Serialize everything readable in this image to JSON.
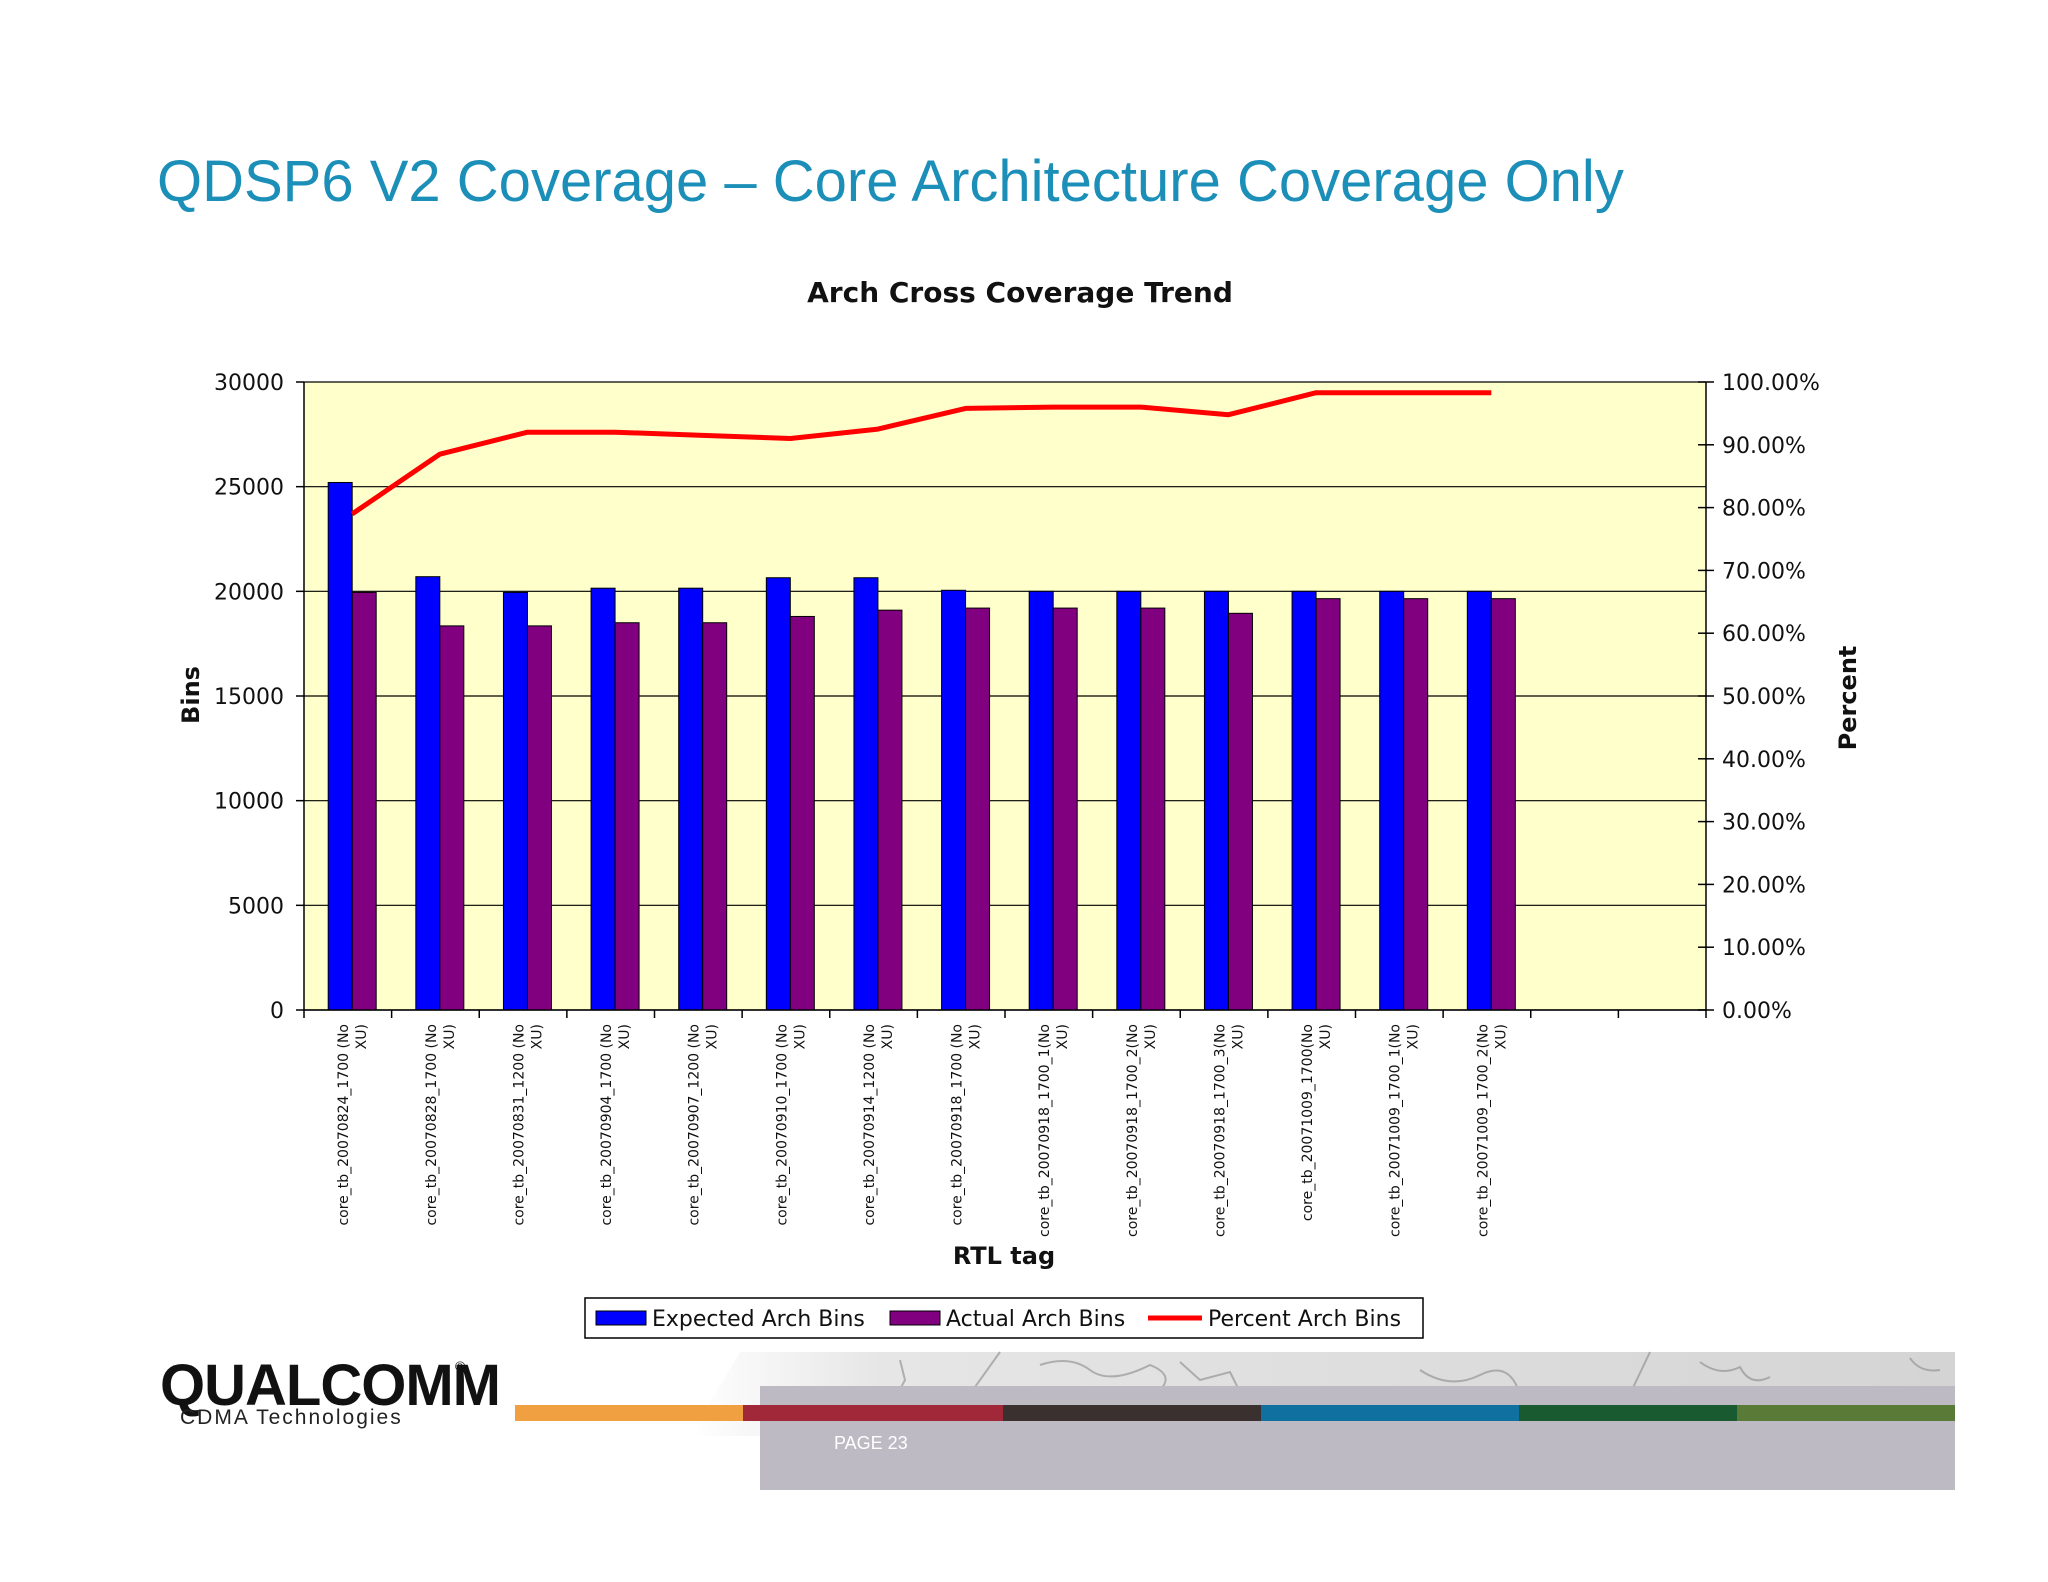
{
  "slide": {
    "title": "QDSP6 V2 Coverage – Core Architecture Coverage Only",
    "page_label": "PAGE 23"
  },
  "logo": {
    "brand": "QUALCOMM",
    "registered_mark": "®",
    "subtitle": "CDMA Technologies"
  },
  "colors": {
    "title": "#1b8fb8",
    "plot_background": "#ffffcc",
    "expected_bar": "#0000ff",
    "actual_bar": "#800080",
    "percent_line": "#ff0000",
    "footer_orange": "#f0a040",
    "footer_red": "#a02838",
    "footer_dark": "#3a3030",
    "footer_blue": "#1070a0",
    "footer_green": "#1a5a30",
    "footer_olive": "#5a7a38",
    "footer_gray": "#bdbac4"
  },
  "chart_data": {
    "type": "bar",
    "title": "Arch Cross Coverage Trend",
    "xlabel": "RTL tag",
    "ylabel": "Bins",
    "y2label": "Percent",
    "ylim": [
      0,
      30000
    ],
    "yticks": [
      "0",
      "5000",
      "10000",
      "15000",
      "20000",
      "25000",
      "30000"
    ],
    "y2lim": [
      0,
      100
    ],
    "y2ticks": [
      "0.00%",
      "10.00%",
      "20.00%",
      "30.00%",
      "40.00%",
      "50.00%",
      "60.00%",
      "70.00%",
      "80.00%",
      "90.00%",
      "100.00%"
    ],
    "grid": "horizontal at major ticks",
    "legend_position": "bottom",
    "categories": [
      [
        "core_tb_20070824_1700 (No",
        "XU)"
      ],
      [
        "core_tb_20070828_1700 (No",
        "XU)"
      ],
      [
        "core_tb_20070831_1200 (No",
        "XU)"
      ],
      [
        "core_tb_20070904_1700 (No",
        "XU)"
      ],
      [
        "core_tb_20070907_1200 (No",
        "XU)"
      ],
      [
        "core_tb_20070910_1700 (No",
        "XU)"
      ],
      [
        "core_tb_20070914_1200 (No",
        "XU)"
      ],
      [
        "core_tb_20070918_1700 (No",
        "XU)"
      ],
      [
        "core_tb_20070918_1700_1(No",
        "XU)"
      ],
      [
        "core_tb_20070918_1700_2(No",
        "XU)"
      ],
      [
        "core_tb_20070918_1700_3(No",
        "XU)"
      ],
      [
        "core_tb_20071009_1700(No",
        "XU)"
      ],
      [
        "core_tb_20071009_1700_1(No",
        "XU)"
      ],
      [
        "core_tb_20071009_1700_2(No",
        "XU)"
      ]
    ],
    "series": [
      {
        "name": "Expected Arch Bins",
        "type": "bar",
        "axis": "left",
        "values": [
          25200,
          20700,
          19950,
          20150,
          20150,
          20650,
          20650,
          20050,
          20000,
          20000,
          20000,
          20000,
          20000,
          20000
        ]
      },
      {
        "name": "Actual Arch Bins",
        "type": "bar",
        "axis": "left",
        "values": [
          19950,
          18350,
          18350,
          18500,
          18500,
          18800,
          19100,
          19200,
          19200,
          19200,
          18950,
          19650,
          19650,
          19650
        ]
      },
      {
        "name": "Percent Arch Bins",
        "type": "line",
        "axis": "right",
        "values": [
          79.0,
          88.5,
          92.0,
          92.0,
          91.5,
          91.0,
          92.5,
          95.8,
          96.0,
          96.0,
          94.8,
          98.3,
          98.3,
          98.3
        ]
      }
    ]
  }
}
